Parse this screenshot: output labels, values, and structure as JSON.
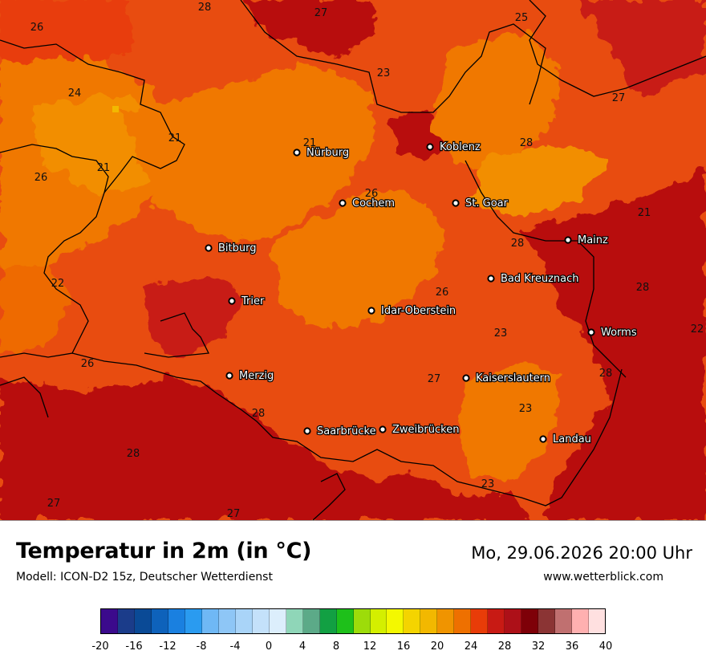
{
  "title": "Temperatur in 2m (in °C)",
  "model": "Modell: ICON-D2 15z, Deutscher Wetterdienst",
  "datetime": "Mo, 29.06.2026 20:00 Uhr",
  "website": "www.wetterblick.com",
  "cities": [
    {
      "name": "Nürburg",
      "label": "Nürburg"
    },
    {
      "name": "Koblenz",
      "label": "Koblenz"
    },
    {
      "name": "Cochem",
      "label": "Cochem"
    },
    {
      "name": "St. Goar",
      "label": "St. Goar"
    },
    {
      "name": "Bitburg",
      "label": "Bitburg"
    },
    {
      "name": "Mainz",
      "label": "Mainz"
    },
    {
      "name": "Bad Kreuznach",
      "label": "Bad Kreuznach"
    },
    {
      "name": "Trier",
      "label": "Trier"
    },
    {
      "name": "Idar-Oberstein",
      "label": "Idar-Oberstein"
    },
    {
      "name": "Worms",
      "label": "Worms"
    },
    {
      "name": "Merzig",
      "label": "Merzig"
    },
    {
      "name": "Kaiserslautern",
      "label": "Kaiserslautern"
    },
    {
      "name": "Saarbrücken",
      "label": "Saarbrücke"
    },
    {
      "name": "Zweibrücken",
      "label": "Zweibrücken"
    },
    {
      "name": "Landau",
      "label": "Landau"
    }
  ],
  "temperature_labels": [
    "26",
    "28",
    "27",
    "25",
    "24",
    "23",
    "27",
    "21",
    "21",
    "21",
    "26",
    "26",
    "28",
    "21",
    "28",
    "28",
    "22",
    "26",
    "23",
    "22",
    "26",
    "27",
    "28",
    "23",
    "28",
    "28",
    "23",
    "27",
    "27"
  ],
  "legend": {
    "ticks": [
      "-20",
      "-16",
      "-12",
      "-8",
      "-4",
      "0",
      "4",
      "8",
      "12",
      "16",
      "20",
      "24",
      "28",
      "32",
      "36",
      "40"
    ],
    "colors": [
      "#3b0a8c",
      "#1b3c8a",
      "#0a4a96",
      "#0e62bb",
      "#1a80e0",
      "#2a9bf0",
      "#6fb8f5",
      "#8ec6f6",
      "#a9d4f8",
      "#c4e1fa",
      "#dceefc",
      "#8fd6b8",
      "#5caa88",
      "#12a043",
      "#1ec01a",
      "#9ddc0a",
      "#d4ef00",
      "#f4f800",
      "#f4d400",
      "#f2b800",
      "#f09400",
      "#ee7000",
      "#e83c08",
      "#c81a14",
      "#ad1018",
      "#7e0008",
      "#8b3434",
      "#c07070",
      "#ffb0b0",
      "#ffe0e0"
    ]
  }
}
